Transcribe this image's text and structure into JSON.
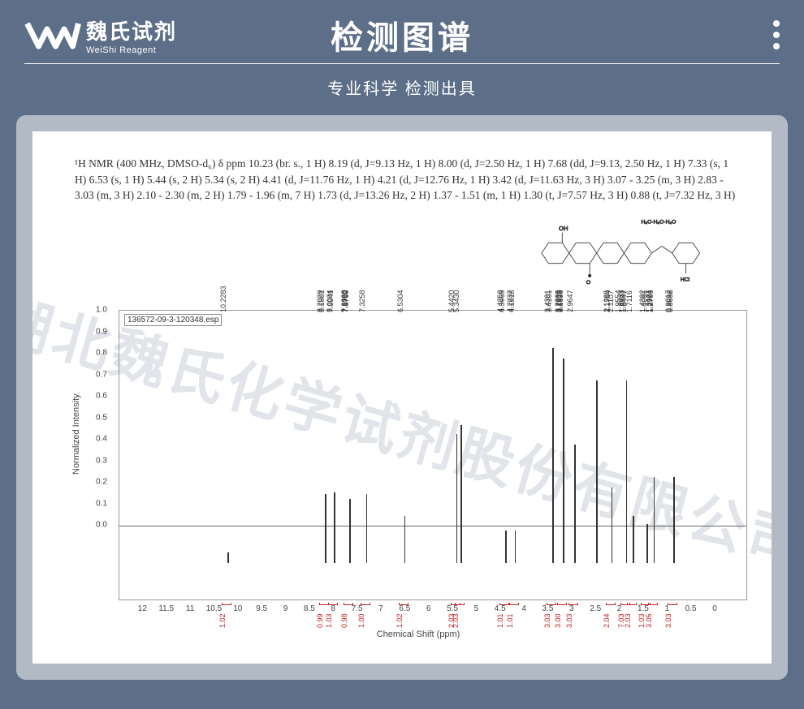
{
  "header": {
    "logo_cn": "魏氏试剂",
    "logo_en": "WeiShi Reagent",
    "title": "检测图谱",
    "subtitle": "专业科学   检测出具"
  },
  "watermark": "湖北魏氏化学试剂股份有限公司",
  "nmr_description": "¹H NMR (400 MHz, DMSO-d₆) δ ppm 10.23 (br. s., 1 H) 8.19 (d, J=9.13 Hz, 1 H) 8.00 (d, J=2.50 Hz, 1 H) 7.68 (dd, J=9.13, 2.50 Hz, 1 H) 7.33 (s, 1 H) 6.53 (s, 1 H) 5.44 (s, 2 H) 5.34 (s, 2 H) 4.41 (d, J=11.76 Hz, 1 H) 4.21 (d, J=12.76 Hz, 1 H) 3.42 (d, J=11.63 Hz, 3 H) 3.07 - 3.25 (m, 3 H) 2.83 - 3.03 (m, 3 H) 2.10 - 2.30 (m, 2 H) 1.79 - 1.96 (m, 7 H) 1.73 (d, J=13.26 Hz, 2 H) 1.37 - 1.51 (m, 1 H) 1.30 (t, J=7.57 Hz, 3 H) 0.88 (t, J=7.32 Hz, 3 H)",
  "molecule_annotation": "H₂O·H₂O·H₂O",
  "chart": {
    "esp_label": "136572-09-3-120348.esp",
    "ylabel": "Normalized Intensity",
    "xlabel": "Chemical Shift (ppm)",
    "ylim": [
      0,
      1.0
    ],
    "ytick_step": 0.1,
    "xlim": [
      12.5,
      0
    ],
    "xticks": [
      12.0,
      11.5,
      11.0,
      10.5,
      10.0,
      9.5,
      9.0,
      8.5,
      8.0,
      7.5,
      7.0,
      6.5,
      6.0,
      5.5,
      5.0,
      4.5,
      4.0,
      3.5,
      3.0,
      2.5,
      2.0,
      1.5,
      1.0,
      0.5,
      0
    ],
    "peak_color": "#333333",
    "integral_color": "#c02020",
    "peak_labels": [
      {
        "ppm": 10.2283,
        "text": "10.2283"
      },
      {
        "ppm": 8.2029,
        "text": "8.2029"
      },
      {
        "ppm": 8.1801,
        "text": "8.1801"
      },
      {
        "ppm": 8.0004,
        "text": "8.0004"
      },
      {
        "ppm": 7.9941,
        "text": "7.9941"
      },
      {
        "ppm": 7.699,
        "text": "7.6990"
      },
      {
        "ppm": 7.6928,
        "text": "7.6928"
      },
      {
        "ppm": 7.6762,
        "text": "7.6762"
      },
      {
        "ppm": 7.67,
        "text": "7.6700"
      },
      {
        "ppm": 7.3258,
        "text": "7.3258"
      },
      {
        "ppm": 6.5304,
        "text": "6.5304"
      },
      {
        "ppm": 5.442,
        "text": "5.4420"
      },
      {
        "ppm": 5.343,
        "text": "5.3430"
      },
      {
        "ppm": 4.4259,
        "text": "4.4259"
      },
      {
        "ppm": 4.3965,
        "text": "4.3965"
      },
      {
        "ppm": 4.2237,
        "text": "4.2237"
      },
      {
        "ppm": 4.1918,
        "text": "4.1918"
      },
      {
        "ppm": 3.4391,
        "text": "3.4391"
      },
      {
        "ppm": 3.4101,
        "text": "3.4101"
      },
      {
        "ppm": 3.2206,
        "text": "3.2206"
      },
      {
        "ppm": 3.2019,
        "text": "3.2019"
      },
      {
        "ppm": 3.1828,
        "text": "3.1828"
      },
      {
        "ppm": 3.1638,
        "text": "3.1638"
      },
      {
        "ppm": 2.9647,
        "text": "2.9647"
      },
      {
        "ppm": 2.1985,
        "text": "2.1985"
      },
      {
        "ppm": 2.1764,
        "text": "2.1764"
      },
      {
        "ppm": 2.1107,
        "text": "2.1107"
      },
      {
        "ppm": 1.9554,
        "text": "1.9554"
      },
      {
        "ppm": 1.8933,
        "text": "1.8933"
      },
      {
        "ppm": 1.8591,
        "text": "1.8591"
      },
      {
        "ppm": 1.8447,
        "text": "1.8447"
      },
      {
        "ppm": 1.7116,
        "text": "1.7116"
      },
      {
        "ppm": 1.4392,
        "text": "1.4392"
      },
      {
        "ppm": 1.4061,
        "text": "1.4061"
      },
      {
        "ppm": 1.3171,
        "text": "1.3171"
      },
      {
        "ppm": 1.2984,
        "text": "1.2984"
      },
      {
        "ppm": 1.2793,
        "text": "1.2793"
      },
      {
        "ppm": 0.9017,
        "text": "0.9017"
      },
      {
        "ppm": 0.8636,
        "text": "0.8636"
      },
      {
        "ppm": 0.8652,
        "text": "0.8652"
      }
    ],
    "peaks": [
      {
        "ppm": 10.23,
        "h": 0.05
      },
      {
        "ppm": 8.19,
        "h": 0.32
      },
      {
        "ppm": 8.0,
        "h": 0.33
      },
      {
        "ppm": 7.68,
        "h": 0.3
      },
      {
        "ppm": 7.33,
        "h": 0.32
      },
      {
        "ppm": 6.53,
        "h": 0.22
      },
      {
        "ppm": 5.44,
        "h": 0.6
      },
      {
        "ppm": 5.34,
        "h": 0.64
      },
      {
        "ppm": 4.41,
        "h": 0.15
      },
      {
        "ppm": 4.21,
        "h": 0.15
      },
      {
        "ppm": 3.42,
        "h": 1.0
      },
      {
        "ppm": 3.2,
        "h": 0.95
      },
      {
        "ppm": 2.96,
        "h": 0.55
      },
      {
        "ppm": 2.5,
        "h": 0.85
      },
      {
        "ppm": 2.18,
        "h": 0.35
      },
      {
        "ppm": 1.88,
        "h": 0.85
      },
      {
        "ppm": 1.73,
        "h": 0.22
      },
      {
        "ppm": 1.44,
        "h": 0.18
      },
      {
        "ppm": 1.3,
        "h": 0.4
      },
      {
        "ppm": 0.88,
        "h": 0.4
      }
    ],
    "integrals": [
      {
        "ppm": 10.23,
        "val": "1.02"
      },
      {
        "ppm": 8.19,
        "val": "0.99"
      },
      {
        "ppm": 8.0,
        "val": "1.03"
      },
      {
        "ppm": 7.68,
        "val": "0.98"
      },
      {
        "ppm": 7.33,
        "val": "1.00"
      },
      {
        "ppm": 6.53,
        "val": "1.02"
      },
      {
        "ppm": 5.44,
        "val": "2.03"
      },
      {
        "ppm": 5.34,
        "val": "2.03"
      },
      {
        "ppm": 4.41,
        "val": "1.01"
      },
      {
        "ppm": 4.21,
        "val": "1.01"
      },
      {
        "ppm": 3.42,
        "val": "3.03"
      },
      {
        "ppm": 3.2,
        "val": "3.00"
      },
      {
        "ppm": 2.96,
        "val": "3.03"
      },
      {
        "ppm": 2.18,
        "val": "2.04"
      },
      {
        "ppm": 1.88,
        "val": "7.03"
      },
      {
        "ppm": 1.73,
        "val": "2.03"
      },
      {
        "ppm": 1.44,
        "val": "1.03"
      },
      {
        "ppm": 1.3,
        "val": "3.05"
      },
      {
        "ppm": 0.88,
        "val": "3.03"
      }
    ]
  }
}
